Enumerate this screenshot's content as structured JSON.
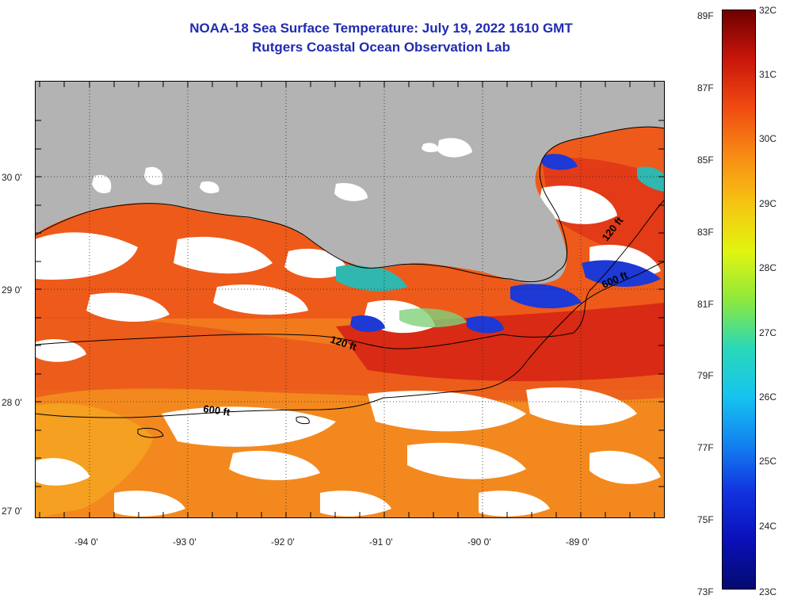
{
  "header": {
    "title": "NOAA-18 Sea Surface Temperature:  July 19, 2022 1610 GMT",
    "subtitle": "Rutgers Coastal Ocean Observation Lab"
  },
  "map": {
    "lat_labels": [
      "30 0'",
      "29 0'",
      "28 0'",
      "27 0'"
    ],
    "lon_labels": [
      "-94 0'",
      "-93 0'",
      "-92 0'",
      "-91 0'",
      "-90 0'",
      "-89 0'"
    ],
    "isobath_labels": [
      "120 ft",
      "600 ft",
      "120 ft",
      "600 ft"
    ],
    "colors": {
      "land": "#b3b3b3",
      "cloud": "#ffffff",
      "warm": "#e8461c",
      "hot": "#d42414",
      "mild": "#f07d1e",
      "cool": "#1d39d6",
      "teal": "#2fb7b0"
    }
  },
  "colorbar": {
    "fahrenheit": [
      "89F",
      "87F",
      "85F",
      "83F",
      "81F",
      "79F",
      "77F",
      "75F",
      "73F"
    ],
    "celsius": [
      "32C",
      "31C",
      "30C",
      "29C",
      "28C",
      "27C",
      "26C",
      "25C",
      "24C",
      "23C"
    ],
    "gradient": [
      "#6e0000",
      "#c8150a",
      "#f04a12",
      "#f88a14",
      "#f6c412",
      "#e2f410",
      "#8ee83c",
      "#2ad8b8",
      "#16c4f0",
      "#1282f0",
      "#1232e0",
      "#0a10b8",
      "#050a70"
    ]
  }
}
